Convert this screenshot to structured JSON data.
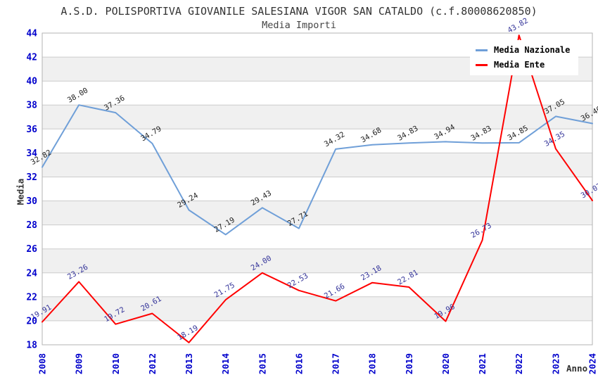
{
  "header": {
    "title": "A.S.D. POLISPORTIVA GIOVANILE SALESIANA VIGOR SAN CATALDO (c.f.80008620850)",
    "subtitle": "Media Importi"
  },
  "legend": {
    "items": [
      {
        "label": "Media Nazionale",
        "color": "#6f9fd8"
      },
      {
        "label": "Media Ente",
        "color": "#ff0000"
      }
    ]
  },
  "chart_data": {
    "type": "line",
    "title": "A.S.D. POLISPORTIVA GIOVANILE SALESIANA VIGOR SAN CATALDO (c.f.80008620850)",
    "subtitle": "Media Importi",
    "xlabel": "Anno",
    "ylabel": "Media",
    "x": [
      "2008",
      "2009",
      "2010",
      "2012",
      "2013",
      "2014",
      "2015",
      "2016",
      "2017",
      "2018",
      "2019",
      "2020",
      "2021",
      "2022",
      "2023",
      "2024"
    ],
    "series": [
      {
        "name": "Media Nazionale",
        "color": "#6f9fd8",
        "label_color": "#222222",
        "values": [
          32.82,
          38.0,
          37.36,
          34.79,
          29.24,
          27.19,
          29.43,
          27.71,
          34.32,
          34.68,
          34.83,
          34.94,
          34.83,
          34.85,
          37.05,
          36.46
        ]
      },
      {
        "name": "Media Ente",
        "color": "#ff0000",
        "label_color": "#333399",
        "values": [
          19.91,
          23.26,
          19.72,
          20.61,
          18.19,
          21.75,
          24.0,
          22.53,
          21.66,
          23.18,
          22.81,
          19.96,
          26.73,
          43.82,
          34.35,
          30.03
        ]
      }
    ],
    "ylim": [
      18,
      44
    ],
    "ytick_step": 2,
    "yticks": [
      18,
      20,
      22,
      24,
      26,
      28,
      30,
      32,
      34,
      36,
      38,
      40,
      42,
      44
    ],
    "grid": true,
    "legend_position": "top-right",
    "colors": {
      "axis_tick_label": "#0000cc",
      "gridline": "#cccccc",
      "plot_border": "#b3b3b3",
      "band_white": "#ffffff",
      "band_gray": "#f0f0f0"
    }
  }
}
